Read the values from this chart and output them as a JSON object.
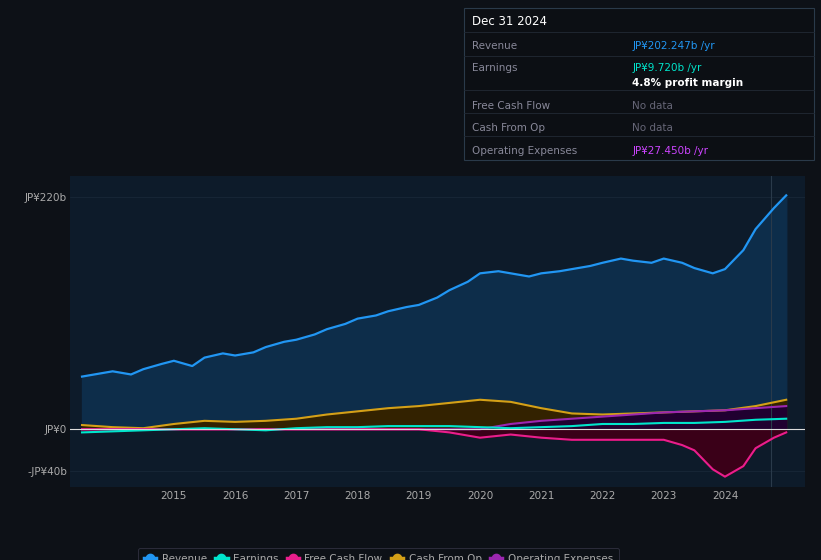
{
  "bg_color": "#0d1117",
  "plot_bg_color": "#0d1b2a",
  "ylim": [
    -55,
    240
  ],
  "xlim": [
    2013.3,
    2025.3
  ],
  "x_ticks": [
    2015,
    2016,
    2017,
    2018,
    2019,
    2020,
    2021,
    2022,
    2023,
    2024
  ],
  "yticks": [
    220,
    0,
    -40
  ],
  "ytick_labels": [
    "JP¥220b",
    "JP¥0",
    "-JP¥40b"
  ],
  "series": {
    "revenue": {
      "color": "#2196f3",
      "fill_color": "#0d2d4a",
      "label": "Revenue",
      "x": [
        2013.5,
        2014.0,
        2014.3,
        2014.5,
        2014.8,
        2015.0,
        2015.3,
        2015.5,
        2015.8,
        2016.0,
        2016.3,
        2016.5,
        2016.8,
        2017.0,
        2017.3,
        2017.5,
        2017.8,
        2018.0,
        2018.3,
        2018.5,
        2018.8,
        2019.0,
        2019.3,
        2019.5,
        2019.8,
        2020.0,
        2020.3,
        2020.5,
        2020.8,
        2021.0,
        2021.3,
        2021.5,
        2021.8,
        2022.0,
        2022.3,
        2022.5,
        2022.8,
        2023.0,
        2023.3,
        2023.5,
        2023.8,
        2024.0,
        2024.3,
        2024.5,
        2024.8,
        2025.0
      ],
      "y": [
        50,
        55,
        52,
        57,
        62,
        65,
        60,
        68,
        72,
        70,
        73,
        78,
        83,
        85,
        90,
        95,
        100,
        105,
        108,
        112,
        116,
        118,
        125,
        132,
        140,
        148,
        150,
        148,
        145,
        148,
        150,
        152,
        155,
        158,
        162,
        160,
        158,
        162,
        158,
        153,
        148,
        152,
        170,
        190,
        210,
        222
      ]
    },
    "earnings": {
      "color": "#00e5cc",
      "label": "Earnings",
      "x": [
        2013.5,
        2014.0,
        2014.5,
        2015.0,
        2015.5,
        2016.0,
        2016.5,
        2017.0,
        2017.5,
        2018.0,
        2018.5,
        2019.0,
        2019.5,
        2020.0,
        2020.5,
        2021.0,
        2021.5,
        2022.0,
        2022.5,
        2023.0,
        2023.5,
        2024.0,
        2024.5,
        2025.0
      ],
      "y": [
        -3,
        -2,
        -1,
        0,
        1,
        0,
        -1,
        1,
        2,
        2,
        3,
        3,
        3,
        2,
        1,
        2,
        3,
        5,
        5,
        6,
        6,
        7,
        9,
        10
      ]
    },
    "free_cash_flow": {
      "color": "#e91e8c",
      "fill_color": "#550022",
      "label": "Free Cash Flow",
      "x": [
        2013.5,
        2014.0,
        2014.5,
        2015.0,
        2015.5,
        2016.0,
        2016.5,
        2017.0,
        2017.5,
        2018.0,
        2018.5,
        2019.0,
        2019.5,
        2020.0,
        2020.5,
        2021.0,
        2021.5,
        2022.0,
        2022.5,
        2023.0,
        2023.3,
        2023.5,
        2023.8,
        2024.0,
        2024.3,
        2024.5,
        2024.8,
        2025.0
      ],
      "y": [
        0,
        0,
        0,
        0,
        0,
        0,
        0,
        0,
        0,
        0,
        0,
        0,
        -3,
        -8,
        -5,
        -8,
        -10,
        -10,
        -10,
        -10,
        -15,
        -20,
        -38,
        -45,
        -35,
        -18,
        -8,
        -3
      ]
    },
    "cash_from_op": {
      "color": "#d4a017",
      "fill_color": "#3a2e00",
      "label": "Cash From Op",
      "x": [
        2013.5,
        2014.0,
        2014.5,
        2015.0,
        2015.5,
        2016.0,
        2016.5,
        2017.0,
        2017.5,
        2018.0,
        2018.5,
        2019.0,
        2019.5,
        2020.0,
        2020.5,
        2021.0,
        2021.5,
        2022.0,
        2022.5,
        2023.0,
        2023.5,
        2024.0,
        2024.5,
        2025.0
      ],
      "y": [
        4,
        2,
        1,
        5,
        8,
        7,
        8,
        10,
        14,
        17,
        20,
        22,
        25,
        28,
        26,
        20,
        15,
        14,
        15,
        16,
        17,
        18,
        22,
        28
      ]
    },
    "operating_expenses": {
      "color": "#9c27b0",
      "fill_color": "#2a0040",
      "label": "Operating Expenses",
      "x": [
        2013.5,
        2014.0,
        2014.5,
        2015.0,
        2015.5,
        2016.0,
        2016.5,
        2017.0,
        2017.5,
        2018.0,
        2018.5,
        2019.0,
        2019.5,
        2020.0,
        2020.5,
        2021.0,
        2021.5,
        2022.0,
        2022.5,
        2023.0,
        2023.5,
        2024.0,
        2024.5,
        2025.0
      ],
      "y": [
        0,
        0,
        0,
        0,
        0,
        0,
        0,
        0,
        0,
        0,
        0,
        0,
        0,
        0,
        5,
        8,
        10,
        12,
        14,
        16,
        17,
        18,
        20,
        22
      ]
    }
  },
  "tooltip": {
    "date": "Dec 31 2024",
    "revenue_label": "Revenue",
    "revenue_value": "JP¥202.247b /yr",
    "earnings_label": "Earnings",
    "earnings_value": "JP¥9.720b /yr",
    "profit_margin": "4.8% profit margin",
    "fcf_label": "Free Cash Flow",
    "fcf_value": "No data",
    "cop_label": "Cash From Op",
    "cop_value": "No data",
    "oe_label": "Operating Expenses",
    "oe_value": "JP¥27.450b /yr",
    "revenue_color": "#2196f3",
    "earnings_color": "#00e5cc",
    "nodata_color": "#666677",
    "oe_color": "#cc44ff",
    "profit_margin_color": "#ffffff"
  },
  "legend": [
    {
      "label": "Revenue",
      "color": "#2196f3"
    },
    {
      "label": "Earnings",
      "color": "#00e5cc"
    },
    {
      "label": "Free Cash Flow",
      "color": "#e91e8c"
    },
    {
      "label": "Cash From Op",
      "color": "#d4a017"
    },
    {
      "label": "Operating Expenses",
      "color": "#9c27b0"
    }
  ],
  "grid_color": "#1a2a3a",
  "zero_line_color": "#dddddd",
  "text_color": "#aaaaaa",
  "vline_x": 2024.75
}
